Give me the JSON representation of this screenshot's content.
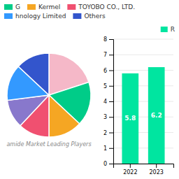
{
  "chart_data": [
    {
      "type": "pie",
      "subtitle": "amide Market Leading Players",
      "categories": [
        null,
        "G",
        "Kermel",
        "TOYOBO CO., LTD.",
        null,
        "hnology Limited",
        "Others"
      ],
      "values": [
        20,
        17,
        13,
        12,
        11,
        14,
        13
      ],
      "colors": [
        "#f5b8c8",
        "#00cc88",
        "#f5a623",
        "#f05070",
        "#8878cc",
        "#3399ff",
        "#3355cc"
      ],
      "legend": "top"
    },
    {
      "type": "bar",
      "categories": [
        "2022",
        "2023"
      ],
      "series": [
        {
          "name": "R",
          "color": "#00e5a0",
          "values": [
            5.8,
            6.2
          ]
        }
      ],
      "ylim": [
        0,
        8
      ],
      "yticks": [
        0,
        1,
        2,
        3,
        4,
        5,
        6,
        7,
        8
      ],
      "grid": true,
      "data_labels": true,
      "legend": "top-right"
    }
  ]
}
